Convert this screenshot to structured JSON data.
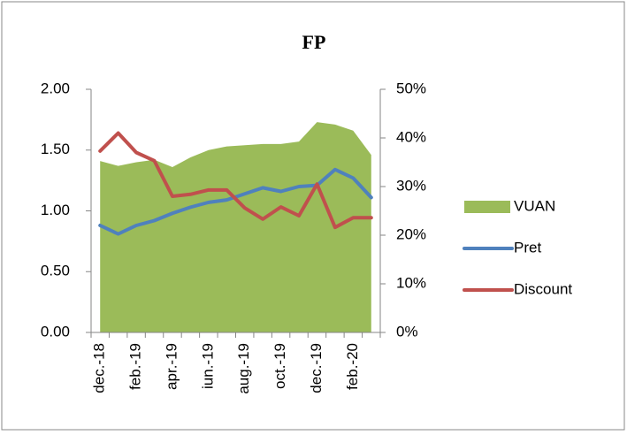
{
  "chart_data": {
    "type": "area-line",
    "title": "FP",
    "categories": [
      "dec.-18",
      null,
      "feb.-19",
      null,
      "apr.-19",
      null,
      "iun.-19",
      null,
      "aug.-19",
      null,
      "oct.-19",
      null,
      "dec.-19",
      null,
      "feb.-20",
      null
    ],
    "series": [
      {
        "name": "VUAN",
        "kind": "area",
        "color": "#9bbb59",
        "axis": "y",
        "values": [
          1.41,
          1.37,
          1.4,
          1.42,
          1.36,
          1.44,
          1.5,
          1.53,
          1.54,
          1.55,
          1.55,
          1.57,
          1.73,
          1.71,
          1.66,
          1.46
        ]
      },
      {
        "name": "Pret",
        "kind": "line",
        "color": "#4f81bd",
        "axis": "y",
        "values": [
          0.88,
          0.81,
          0.88,
          0.92,
          0.98,
          1.03,
          1.07,
          1.09,
          1.14,
          1.19,
          1.16,
          1.2,
          1.21,
          1.34,
          1.27,
          1.11
        ]
      },
      {
        "name": "Discount",
        "kind": "line",
        "color": "#c0504d",
        "axis": "y2",
        "values": [
          37.3,
          41,
          37,
          35.3,
          28,
          28.4,
          29.3,
          29.3,
          25.6,
          23.3,
          25.8,
          24,
          30.5,
          21.6,
          23.6,
          23.6
        ]
      }
    ],
    "ylim": [
      0,
      2
    ],
    "yticks": [
      {
        "value": 0,
        "label": "0.00"
      },
      {
        "value": 0.5,
        "label": "0.50"
      },
      {
        "value": 1,
        "label": "1.00"
      },
      {
        "value": 1.5,
        "label": "1.50"
      },
      {
        "value": 2,
        "label": "2.00"
      }
    ],
    "y2lim": [
      0,
      50
    ],
    "y2ticks": [
      {
        "value": 0,
        "label": "0%"
      },
      {
        "value": 10,
        "label": "10%"
      },
      {
        "value": 20,
        "label": "20%"
      },
      {
        "value": 30,
        "label": "30%"
      },
      {
        "value": 40,
        "label": "40%"
      },
      {
        "value": 50,
        "label": "50%"
      }
    ],
    "grid": false,
    "legend": "right"
  }
}
